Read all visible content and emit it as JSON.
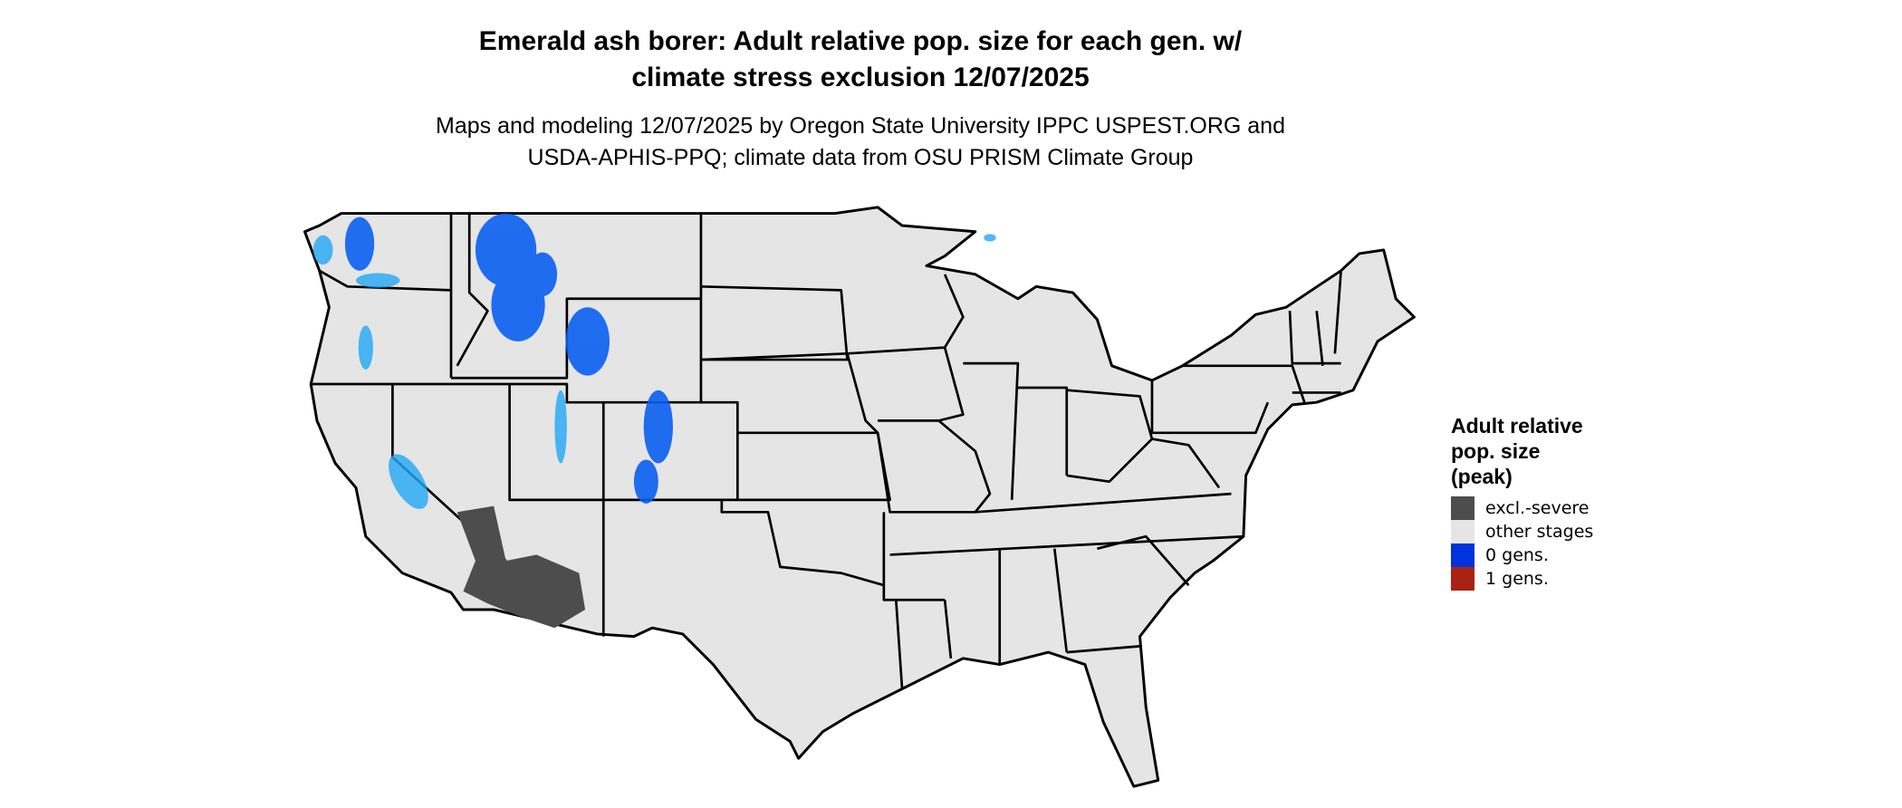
{
  "title": {
    "line1": "Emerald ash borer: Adult relative pop. size for each gen. w/",
    "line2": "climate stress exclusion 12/07/2025"
  },
  "subtitle": {
    "line1": "Maps and modeling 12/07/2025 by Oregon State University IPPC USPEST.ORG and",
    "line2": "USDA-APHIS-PPQ; climate data from OSU PRISM Climate Group"
  },
  "legend": {
    "title_lines": [
      "Adult relative",
      "pop. size",
      "(peak)"
    ],
    "items": [
      {
        "label": "excl.-severe",
        "color": "#4d4d4d"
      },
      {
        "label": "other stages",
        "color": "#e5e5e5"
      },
      {
        "label": "0 gens.",
        "color": "#0033dd"
      },
      {
        "label": "1 gens.",
        "color": "#aa2211"
      }
    ]
  },
  "map": {
    "region": "contiguous United States",
    "base_color": "#e5e5e5",
    "border_color": "#000000",
    "patch_colors": {
      "blue": "#0a5ff0",
      "light_blue": "#21a8f5",
      "dark": "#4d4d4d"
    }
  }
}
